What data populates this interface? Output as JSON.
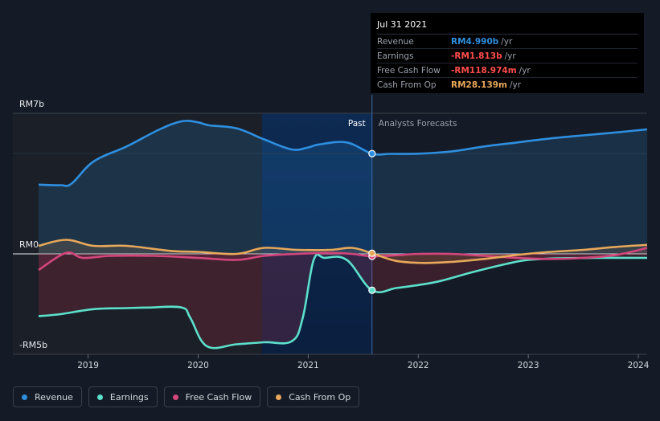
{
  "chart_data": {
    "type": "line",
    "x_range": [
      2018.55,
      2024.08
    ],
    "y_range": [
      -5,
      7
    ],
    "divider_x": 2021.58,
    "forecast_shade_start": 2020.58,
    "y_ticks": [
      {
        "value": 7,
        "label": "RM7b"
      },
      {
        "value": 0,
        "label": "RM0"
      },
      {
        "value": -5,
        "label": "-RM5b"
      }
    ],
    "x_ticks": [
      {
        "value": 2019,
        "label": "2019"
      },
      {
        "value": 2020,
        "label": "2020"
      },
      {
        "value": 2021,
        "label": "2021"
      },
      {
        "value": 2022,
        "label": "2022"
      },
      {
        "value": 2023,
        "label": "2023"
      },
      {
        "value": 2024,
        "label": "2024"
      }
    ],
    "segment_labels": {
      "past": "Past",
      "forecast": "Analysts Forecasts"
    },
    "series": [
      {
        "name": "Revenue",
        "color": "#2e8fe0",
        "points": [
          [
            2018.55,
            3.45
          ],
          [
            2018.75,
            3.42
          ],
          [
            2018.85,
            3.5
          ],
          [
            2019.05,
            4.6
          ],
          [
            2019.35,
            5.35
          ],
          [
            2019.65,
            6.2
          ],
          [
            2019.85,
            6.6
          ],
          [
            2020.0,
            6.55
          ],
          [
            2020.1,
            6.4
          ],
          [
            2020.35,
            6.25
          ],
          [
            2020.6,
            5.7
          ],
          [
            2020.85,
            5.2
          ],
          [
            2021.0,
            5.3
          ],
          [
            2021.1,
            5.45
          ],
          [
            2021.35,
            5.55
          ],
          [
            2021.58,
            4.99
          ],
          [
            2021.75,
            4.98
          ],
          [
            2022.0,
            4.99
          ],
          [
            2022.3,
            5.1
          ],
          [
            2022.6,
            5.35
          ],
          [
            2022.9,
            5.55
          ],
          [
            2023.2,
            5.75
          ],
          [
            2023.5,
            5.9
          ],
          [
            2023.8,
            6.05
          ],
          [
            2024.08,
            6.2
          ]
        ]
      },
      {
        "name": "Earnings",
        "color": "#5ce0cc",
        "points": [
          [
            2018.55,
            -3.1
          ],
          [
            2018.75,
            -3.0
          ],
          [
            2019.05,
            -2.75
          ],
          [
            2019.35,
            -2.7
          ],
          [
            2019.55,
            -2.67
          ],
          [
            2019.85,
            -2.67
          ],
          [
            2019.93,
            -3.2
          ],
          [
            2020.08,
            -4.6
          ],
          [
            2020.35,
            -4.5
          ],
          [
            2020.6,
            -4.4
          ],
          [
            2020.85,
            -4.35
          ],
          [
            2020.95,
            -3.2
          ],
          [
            2021.05,
            -0.3
          ],
          [
            2021.15,
            -0.2
          ],
          [
            2021.35,
            -0.3
          ],
          [
            2021.58,
            -1.81
          ],
          [
            2021.8,
            -1.7
          ],
          [
            2022.0,
            -1.55
          ],
          [
            2022.2,
            -1.35
          ],
          [
            2022.5,
            -0.9
          ],
          [
            2022.8,
            -0.5
          ],
          [
            2023.0,
            -0.3
          ],
          [
            2023.3,
            -0.22
          ],
          [
            2023.6,
            -0.2
          ],
          [
            2024.08,
            -0.2
          ]
        ]
      },
      {
        "name": "Free Cash Flow",
        "color": "#d4457c",
        "points": [
          [
            2018.55,
            -0.8
          ],
          [
            2018.8,
            0.05
          ],
          [
            2018.95,
            -0.2
          ],
          [
            2019.2,
            -0.1
          ],
          [
            2019.6,
            -0.1
          ],
          [
            2020.0,
            -0.2
          ],
          [
            2020.35,
            -0.3
          ],
          [
            2020.6,
            -0.1
          ],
          [
            2020.9,
            0.0
          ],
          [
            2021.2,
            0.05
          ],
          [
            2021.4,
            0.0
          ],
          [
            2021.58,
            -0.12
          ],
          [
            2021.85,
            -0.05
          ],
          [
            2022.0,
            0.0
          ],
          [
            2022.3,
            0.0
          ],
          [
            2022.6,
            -0.1
          ],
          [
            2022.9,
            -0.2
          ],
          [
            2023.2,
            -0.25
          ],
          [
            2023.5,
            -0.2
          ],
          [
            2023.8,
            -0.05
          ],
          [
            2024.08,
            0.3
          ]
        ]
      },
      {
        "name": "Cash From Op",
        "color": "#e8a85a",
        "points": [
          [
            2018.55,
            0.4
          ],
          [
            2018.8,
            0.7
          ],
          [
            2019.05,
            0.4
          ],
          [
            2019.35,
            0.4
          ],
          [
            2019.75,
            0.15
          ],
          [
            2020.0,
            0.1
          ],
          [
            2020.35,
            0.0
          ],
          [
            2020.6,
            0.3
          ],
          [
            2020.9,
            0.2
          ],
          [
            2021.2,
            0.2
          ],
          [
            2021.4,
            0.3
          ],
          [
            2021.58,
            0.03
          ],
          [
            2021.8,
            -0.35
          ],
          [
            2022.05,
            -0.45
          ],
          [
            2022.3,
            -0.4
          ],
          [
            2022.6,
            -0.25
          ],
          [
            2022.9,
            -0.05
          ],
          [
            2023.2,
            0.1
          ],
          [
            2023.5,
            0.2
          ],
          [
            2023.8,
            0.35
          ],
          [
            2024.08,
            0.45
          ]
        ]
      }
    ],
    "markers": [
      {
        "series": "Revenue",
        "x": 2021.58,
        "y": 4.99
      },
      {
        "series": "Earnings",
        "x": 2021.58,
        "y": -1.81
      },
      {
        "series": "Free Cash Flow",
        "x": 2021.58,
        "y": -0.12
      },
      {
        "series": "Cash From Op",
        "x": 2021.58,
        "y": 0.03
      }
    ]
  },
  "tooltip": {
    "date": "Jul 31 2021",
    "rows": [
      {
        "label": "Revenue",
        "value": "RM4.990b",
        "unit": "/yr",
        "color": "#2e8fe0"
      },
      {
        "label": "Earnings",
        "value": "-RM1.813b",
        "unit": "/yr",
        "color": "#ff4d4d"
      },
      {
        "label": "Free Cash Flow",
        "value": "-RM118.974m",
        "unit": "/yr",
        "color": "#ff4d4d"
      },
      {
        "label": "Cash From Op",
        "value": "RM28.139m",
        "unit": "/yr",
        "color": "#e8a85a"
      }
    ]
  },
  "legend": [
    {
      "label": "Revenue",
      "color": "#2e8fe0"
    },
    {
      "label": "Earnings",
      "color": "#5ce0cc"
    },
    {
      "label": "Free Cash Flow",
      "color": "#d4457c"
    },
    {
      "label": "Cash From Op",
      "color": "#e8a85a"
    }
  ]
}
